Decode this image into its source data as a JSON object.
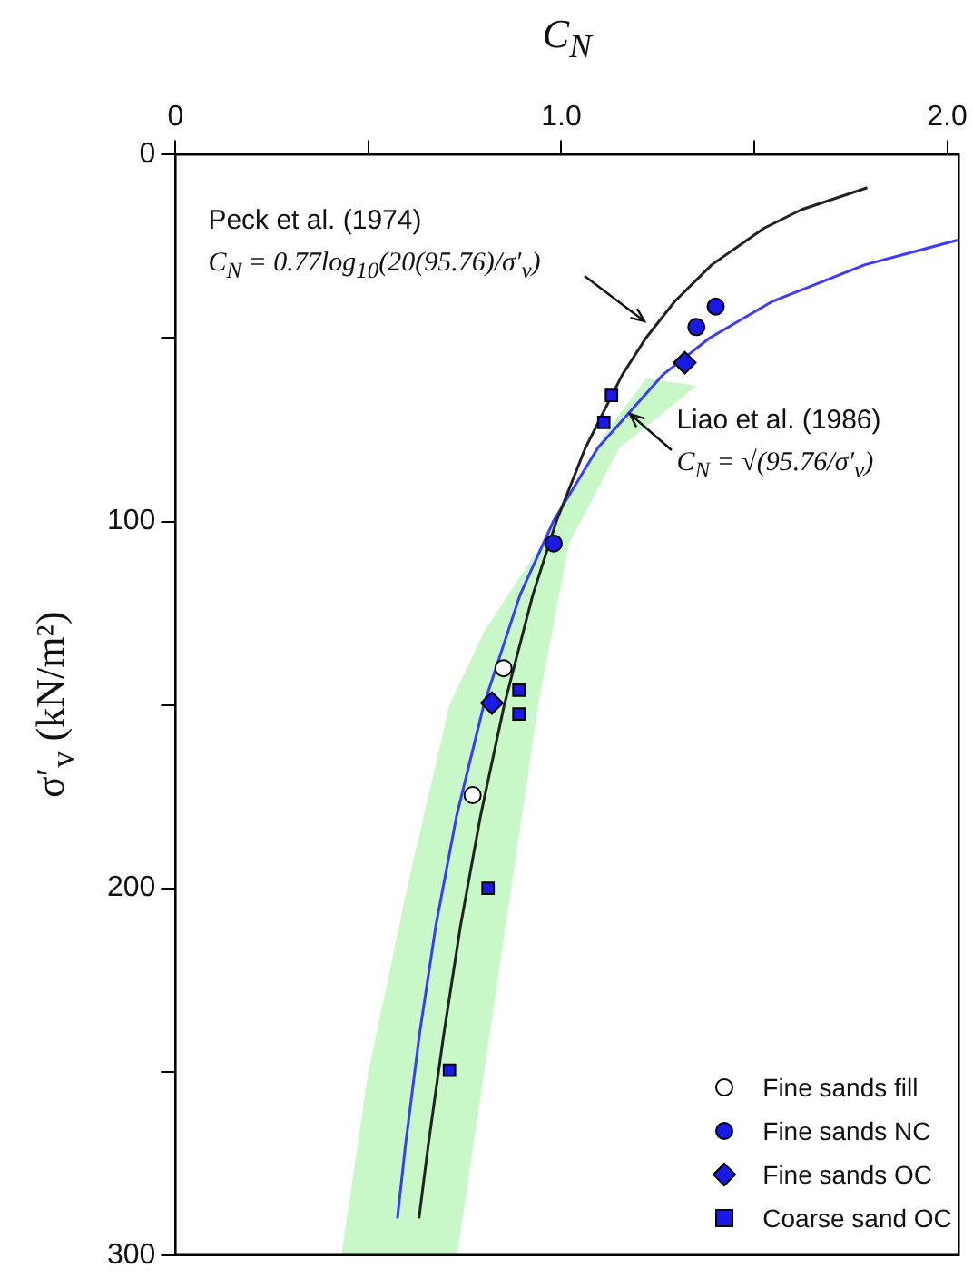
{
  "chart_data": {
    "type": "scatter",
    "xlabel": "C$_{N}$",
    "ylabel": "σ′$_{v}$ (kN/m²)",
    "xlim": [
      0,
      2.03
    ],
    "xticks": [
      0,
      {
        "value": 0.5,
        "label": null
      },
      {
        "value": 1,
        "label": "1.0"
      },
      {
        "value": 1.5,
        "label": null
      },
      {
        "value": 2,
        "label": "2.0"
      }
    ],
    "ylim": [
      300,
      0
    ],
    "yticks": [
      0,
      {
        "value": 50,
        "label": null
      },
      100,
      {
        "value": 150,
        "label": null
      },
      200,
      {
        "value": 250,
        "label": null
      },
      300
    ],
    "grid": false,
    "legend": "bottom right",
    "annotations": [
      "Peck et al. (1974)\nC$_{N}$ = 0.77log$_{10}$(20(95.76)/σ′$_{v}$)",
      "Liao et al. (1986)\nC$_{N}$ = √(95.76/σ′$_{v}$)"
    ],
    "series": [
      {
        "type": "area",
        "color": "#c8f8c8",
        "x": [
          1.22,
          1.35,
          1.15,
          1.02,
          0.94,
          0.87,
          0.8,
          0.73,
          0.43,
          0.5,
          0.6,
          0.71,
          0.8,
          0.95,
          1.0,
          1.12
        ],
        "values": [
          61,
          63,
          80,
          106,
          150,
          200,
          250,
          300,
          300,
          250,
          200,
          150,
          130,
          106,
          96,
          75
        ]
      },
      {
        "type": "line",
        "color": "#222222",
        "x": [
          1.793,
          1.622,
          1.526,
          1.39,
          1.294,
          1.219,
          1.158,
          1.062,
          0.987,
          0.926,
          0.852,
          0.791,
          0.739,
          0.695,
          0.655,
          0.631
        ],
        "values": [
          9,
          15,
          20,
          30,
          40,
          50,
          60,
          80,
          100,
          120,
          150,
          180,
          210,
          240,
          270,
          290
        ]
      },
      {
        "type": "line",
        "color": "#3b3bff",
        "x": [
          2.027,
          1.787,
          1.547,
          1.384,
          1.263,
          1.094,
          0.979,
          0.893,
          0.799,
          0.729,
          0.675,
          0.632,
          0.596,
          0.575
        ],
        "values": [
          23.3,
          30,
          40,
          50,
          60,
          80,
          100,
          120,
          150,
          180,
          210,
          240,
          270,
          290
        ]
      },
      {
        "name": "Fine sands fill",
        "marker": "circle",
        "color": "#ffffff",
        "x": [
          0.85,
          0.77
        ],
        "values": [
          140,
          174.6
        ]
      },
      {
        "name": "Fine sands NC",
        "marker": "circle",
        "color": "#1a1ae6",
        "x": [
          1.4,
          1.35,
          0.98
        ],
        "values": [
          41.4,
          47,
          106
        ]
      },
      {
        "name": "Fine sands OC",
        "marker": "diamond",
        "color": "#1a1ae6",
        "x": [
          1.32,
          0.82
        ],
        "values": [
          56.7,
          149.5
        ]
      },
      {
        "name": "Coarse sand OC",
        "marker": "square",
        "color": "#1a1ae6",
        "x": [
          1.13,
          1.11,
          0.89,
          0.89,
          0.81,
          0.71
        ],
        "values": [
          65.6,
          73,
          146,
          152.5,
          200,
          249.6
        ]
      }
    ]
  }
}
